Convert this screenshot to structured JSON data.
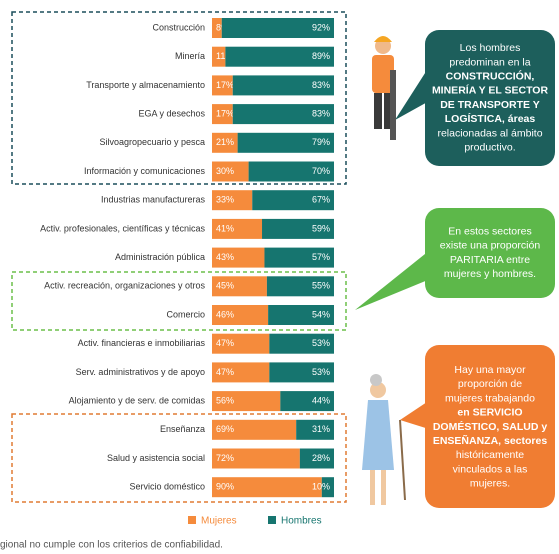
{
  "chart_data": {
    "type": "stacked-bar-horizontal",
    "categories": [
      "Construcción",
      "Minería",
      "Transporte y almacenamiento",
      "EGA y desechos",
      "Silvoagropecuario y pesca",
      "Información y comunicaciones",
      "Industrias manufactureras",
      "Activ. profesionales, científicas y técnicas",
      "Administración pública",
      "Activ. recreación, organizaciones y otros",
      "Comercio",
      "Activ. financieras e inmobiliarias",
      "Serv. administrativos y de apoyo",
      "Alojamiento y de serv. de comidas",
      "Enseñanza",
      "Salud y asistencia social",
      "Servicio doméstico"
    ],
    "xlim": [
      0,
      100
    ],
    "series": [
      {
        "name": "Mujeres",
        "color": "#f58b3c",
        "values": [
          8,
          11,
          17,
          17,
          21,
          30,
          33,
          41,
          43,
          45,
          46,
          47,
          47,
          56,
          69,
          72,
          90
        ],
        "value_labels": [
          "8%",
          "11%",
          "17%",
          "17%",
          "21%",
          "30%",
          "33%",
          "41%",
          "43%",
          "45%",
          "46%",
          "47%",
          "47%",
          "56%",
          "69%",
          "72%",
          "90%"
        ]
      },
      {
        "name": "Hombres",
        "color": "#16756f",
        "values": [
          92,
          89,
          83,
          83,
          79,
          70,
          67,
          59,
          57,
          55,
          54,
          53,
          53,
          44,
          31,
          28,
          10
        ],
        "value_labels": [
          "92%",
          "89%",
          "83%",
          "83%",
          "79%",
          "70%",
          "67%",
          "59%",
          "57%",
          "55%",
          "54%",
          "53%",
          "53%",
          "44%",
          "31%",
          "28%",
          "10%"
        ]
      }
    ],
    "callouts": [
      {
        "lines": [
          "Los hombres",
          "predominan en la",
          "CONSTRUCCIÓN,",
          "MINERÍA Y EL SECTOR",
          "DE TRANSPORTE Y",
          "LOGÍSTICA, áreas",
          "relacionadas al ámbito",
          "productivo."
        ]
      },
      {
        "lines": [
          "En estos sectores",
          "existe una proporción",
          "PARITARIA entre",
          "mujeres y hombres."
        ]
      },
      {
        "lines": [
          "Hay una mayor",
          "proporción de",
          "mujeres trabajando",
          "en SERVICIO",
          "DOMÉSTICO, SALUD y",
          "ENSEÑANZA, sectores",
          "históricamente",
          "vinculados a las",
          "mujeres."
        ]
      }
    ],
    "footnote": "gional no cumple con los criterios de confiabilidad."
  }
}
